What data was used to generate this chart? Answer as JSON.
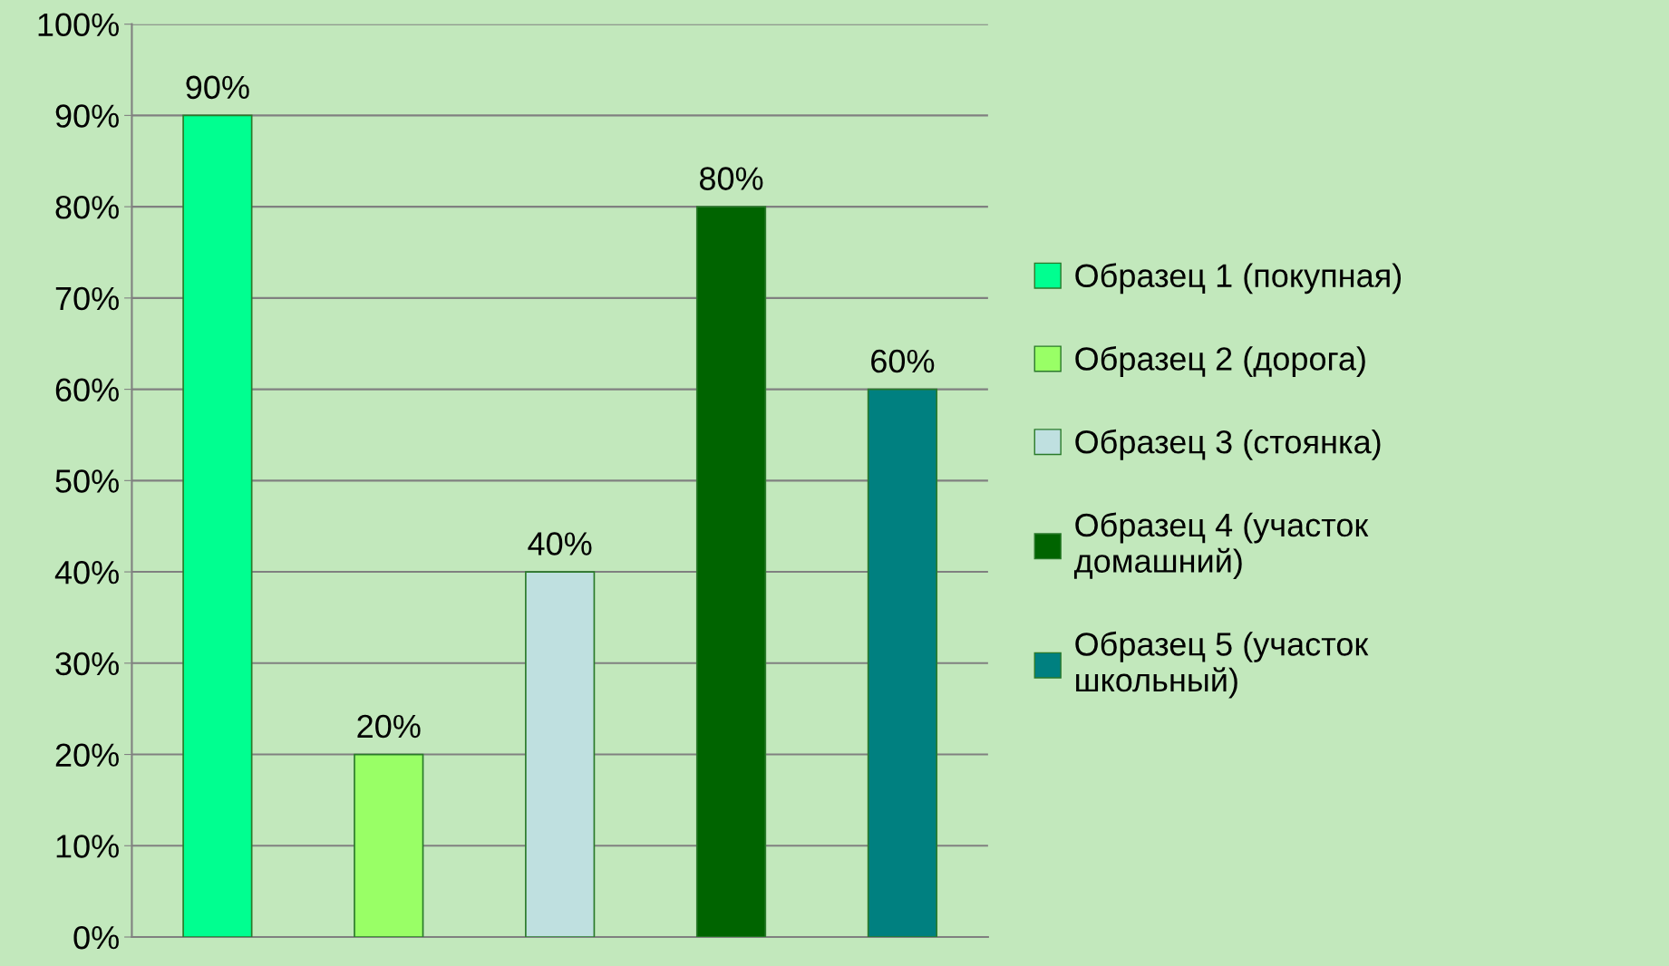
{
  "chart_data": {
    "type": "bar",
    "categories": [
      null,
      null,
      null,
      null,
      null
    ],
    "series": [
      {
        "name": "Образец 1 (покупная)",
        "color": "#00ff90",
        "values": [
          90,
          null,
          null,
          null,
          null
        ]
      },
      {
        "name": "Образец 2 (дорога)",
        "color": "#99ff66",
        "values": [
          null,
          20,
          null,
          null,
          null
        ]
      },
      {
        "name": "Образец 3 (стоянка)",
        "color": "#bfe0e0",
        "values": [
          null,
          null,
          40,
          null,
          null
        ]
      },
      {
        "name": "Образец 4 (участок\nдомашний)",
        "color": "#006400",
        "values": [
          null,
          null,
          null,
          80,
          null
        ]
      },
      {
        "name": "Образец 5 (участок\nшкольный)",
        "color": "#008080",
        "values": [
          null,
          null,
          null,
          null,
          60
        ]
      }
    ],
    "value_labels": [
      "90%",
      "20%",
      "40%",
      "80%",
      "60%"
    ],
    "ylim": [
      0,
      100
    ],
    "yticks": [
      {
        "value": 0,
        "label": "0%"
      },
      {
        "value": 10,
        "label": "10%"
      },
      {
        "value": 20,
        "label": "20%"
      },
      {
        "value": 30,
        "label": "30%"
      },
      {
        "value": 40,
        "label": "40%"
      },
      {
        "value": 50,
        "label": "50%"
      },
      {
        "value": 60,
        "label": "60%"
      },
      {
        "value": 70,
        "label": "70%"
      },
      {
        "value": 80,
        "label": "80%"
      },
      {
        "value": 90,
        "label": "90%"
      },
      {
        "value": 100,
        "label": "100%"
      }
    ],
    "grid": "y",
    "legend": "right",
    "tick_labels": "y"
  }
}
